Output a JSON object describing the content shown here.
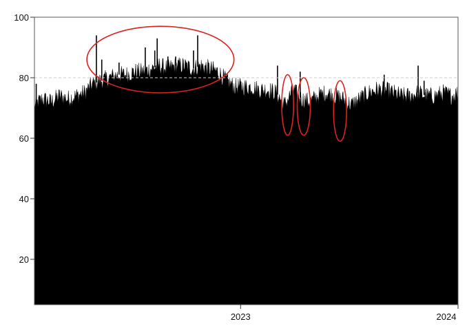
{
  "chart_data": {
    "type": "area",
    "title": "",
    "xlabel": "",
    "ylabel": "",
    "x_ticks": [
      {
        "x": "2023-01-01",
        "label": "2023"
      },
      {
        "x": "2024-01-01",
        "label": "2024"
      }
    ],
    "y_ticks": [
      {
        "y": 20,
        "label": "20"
      },
      {
        "y": 40,
        "label": "40"
      },
      {
        "y": 60,
        "label": "60"
      },
      {
        "y": 80,
        "label": "80"
      },
      {
        "y": 100,
        "label": "100"
      }
    ],
    "xlim": [
      "2022-01-20",
      "2024-01-01"
    ],
    "ylim": [
      5,
      100
    ],
    "reference_line": {
      "y": 80,
      "style": "dashed",
      "color": "#cccccc"
    },
    "grid": false,
    "fill_color": "#000000",
    "annotation_color": "#dd2222",
    "series": [
      {
        "points": [
          [
            "2022-01-20",
            71
          ],
          [
            "2022-02-03",
            73
          ],
          [
            "2022-02-17",
            72
          ],
          [
            "2022-03-03",
            74
          ],
          [
            "2022-03-17",
            73
          ],
          [
            "2022-03-31",
            74
          ],
          [
            "2022-04-14",
            75
          ],
          [
            "2022-04-28",
            78
          ],
          [
            "2022-05-12",
            79
          ],
          [
            "2022-05-26",
            80
          ],
          [
            "2022-06-09",
            81
          ],
          [
            "2022-06-23",
            81
          ],
          [
            "2022-07-07",
            82
          ],
          [
            "2022-07-21",
            82
          ],
          [
            "2022-08-04",
            83
          ],
          [
            "2022-08-18",
            84
          ],
          [
            "2022-09-01",
            83
          ],
          [
            "2022-09-15",
            84
          ],
          [
            "2022-09-29",
            84
          ],
          [
            "2022-10-13",
            83
          ],
          [
            "2022-10-27",
            84
          ],
          [
            "2022-11-10",
            83
          ],
          [
            "2022-11-24",
            82
          ],
          [
            "2022-12-08",
            79
          ],
          [
            "2022-12-22",
            77
          ],
          [
            "2023-01-05",
            77
          ],
          [
            "2023-01-19",
            77
          ],
          [
            "2023-02-02",
            76
          ],
          [
            "2023-02-16",
            76
          ],
          [
            "2023-03-02",
            75
          ],
          [
            "2023-03-16",
            71
          ],
          [
            "2023-03-30",
            76
          ],
          [
            "2023-04-13",
            73
          ],
          [
            "2023-04-27",
            72
          ],
          [
            "2023-05-11",
            74
          ],
          [
            "2023-05-25",
            75
          ],
          [
            "2023-06-08",
            74
          ],
          [
            "2023-06-22",
            73
          ],
          [
            "2023-07-06",
            71
          ],
          [
            "2023-07-20",
            73
          ],
          [
            "2023-08-03",
            75
          ],
          [
            "2023-08-17",
            76
          ],
          [
            "2023-08-31",
            76
          ],
          [
            "2023-09-14",
            75
          ],
          [
            "2023-09-28",
            74
          ],
          [
            "2023-10-12",
            74
          ],
          [
            "2023-10-26",
            75
          ],
          [
            "2023-11-09",
            74
          ],
          [
            "2023-11-23",
            74
          ],
          [
            "2023-12-07",
            75
          ],
          [
            "2023-12-21",
            74
          ],
          [
            "2024-01-01",
            75
          ]
        ],
        "spikes": [
          [
            "2022-01-23",
            78
          ],
          [
            "2022-05-04",
            94
          ],
          [
            "2022-05-13",
            86
          ],
          [
            "2022-06-11",
            85
          ],
          [
            "2022-07-25",
            90
          ],
          [
            "2022-08-10",
            89
          ],
          [
            "2022-08-14",
            93
          ],
          [
            "2022-09-01",
            87
          ],
          [
            "2022-09-14",
            87
          ],
          [
            "2022-10-14",
            89
          ],
          [
            "2022-10-21",
            94
          ],
          [
            "2023-03-04",
            84
          ],
          [
            "2023-04-11",
            82
          ],
          [
            "2023-08-30",
            81
          ],
          [
            "2023-10-26",
            84
          ],
          [
            "2023-11-05",
            79
          ]
        ]
      }
    ],
    "annotations": [
      {
        "shape": "ellipse",
        "x_range": [
          "2022-04-18",
          "2022-12-21"
        ],
        "y_range": [
          75,
          97
        ]
      },
      {
        "shape": "ellipse",
        "x_range": [
          "2023-03-11",
          "2023-03-31"
        ],
        "y_range": [
          61,
          81
        ]
      },
      {
        "shape": "ellipse",
        "x_range": [
          "2023-04-06",
          "2023-04-28"
        ],
        "y_range": [
          61,
          80
        ]
      },
      {
        "shape": "ellipse",
        "x_range": [
          "2023-06-06",
          "2023-06-28"
        ],
        "y_range": [
          59,
          79
        ]
      }
    ]
  }
}
